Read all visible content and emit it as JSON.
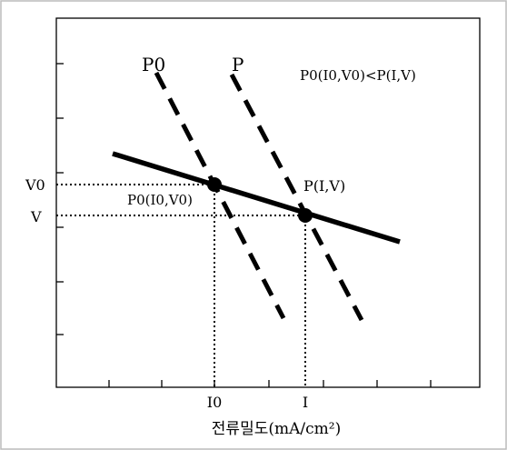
{
  "labels": {
    "curve_p0": "P0",
    "curve_p": "P",
    "relation": "P0(I0,V0)<P(I,V)",
    "v0": "V0",
    "v": "V",
    "point_p0": "P0(I0,V0)",
    "point_p": "P(I,V)",
    "i0": "I0",
    "i": "I",
    "xlabel": "전류밀도(mA/cm²)"
  },
  "colors": {
    "ink": "#000000",
    "frame": "#bbbbbb",
    "background": "#ffffff"
  }
}
